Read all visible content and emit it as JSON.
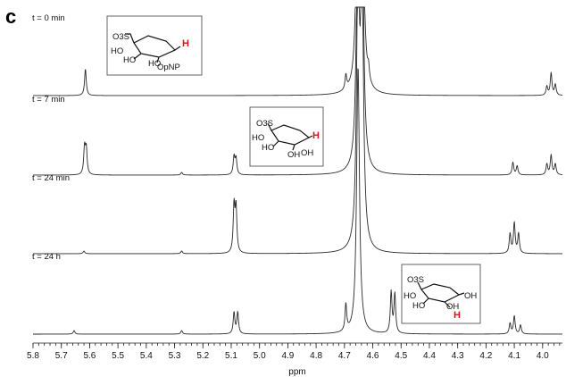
{
  "panel_label": "c",
  "chart_data": {
    "type": "line",
    "title": "",
    "xlabel": "ppm",
    "ylabel": "",
    "x_reversed": true,
    "xlim": [
      5.8,
      3.93
    ],
    "x_ticks": [
      "5.8",
      "5.7",
      "5.6",
      "5.5",
      "5.4",
      "5.3",
      "5.2",
      "5.1",
      "5.0",
      "4.9",
      "4.8",
      "4.7",
      "4.6",
      "4.5",
      "4.4",
      "4.3",
      "4.2",
      "4.1",
      "4.0"
    ],
    "grid": false,
    "series": [
      {
        "name": "t = 0 min",
        "peaks": [
          {
            "ppm": 5.615,
            "height": 30
          },
          {
            "ppm": 4.695,
            "height": 16
          },
          {
            "ppm": 4.652,
            "height": 300
          },
          {
            "ppm": 4.638,
            "height": 300
          },
          {
            "ppm": 4.615,
            "height": 14
          },
          {
            "ppm": 3.985,
            "height": 10
          },
          {
            "ppm": 3.97,
            "height": 25
          },
          {
            "ppm": 3.955,
            "height": 12
          }
        ],
        "structure": {
          "labels": [
            "O3S",
            "HO",
            "HO",
            "HO",
            "OpNP",
            "H"
          ],
          "highlight": "H"
        }
      },
      {
        "name": "t = 7 min",
        "peaks": [
          {
            "ppm": 5.618,
            "height": 30
          },
          {
            "ppm": 5.612,
            "height": 28
          },
          {
            "ppm": 5.275,
            "height": 3
          },
          {
            "ppm": 5.09,
            "height": 20
          },
          {
            "ppm": 5.083,
            "height": 18
          },
          {
            "ppm": 4.652,
            "height": 300
          },
          {
            "ppm": 4.638,
            "height": 300
          },
          {
            "ppm": 4.105,
            "height": 14
          },
          {
            "ppm": 4.09,
            "height": 10
          },
          {
            "ppm": 3.985,
            "height": 12
          },
          {
            "ppm": 3.97,
            "height": 22
          },
          {
            "ppm": 3.955,
            "height": 12
          }
        ],
        "structure": {
          "labels": [
            "O3S",
            "HO",
            "HO",
            "OH",
            "OH",
            "H"
          ],
          "highlight": "H"
        }
      },
      {
        "name": "t = 24 min",
        "peaks": [
          {
            "ppm": 5.62,
            "height": 3
          },
          {
            "ppm": 5.275,
            "height": 3
          },
          {
            "ppm": 5.09,
            "height": 52
          },
          {
            "ppm": 5.083,
            "height": 50
          },
          {
            "ppm": 4.652,
            "height": 300
          },
          {
            "ppm": 4.638,
            "height": 300
          },
          {
            "ppm": 4.115,
            "height": 22
          },
          {
            "ppm": 4.1,
            "height": 34
          },
          {
            "ppm": 4.085,
            "height": 22
          }
        ]
      },
      {
        "name": "t = 24 h",
        "peaks": [
          {
            "ppm": 5.655,
            "height": 4
          },
          {
            "ppm": 5.275,
            "height": 4
          },
          {
            "ppm": 5.09,
            "height": 24
          },
          {
            "ppm": 5.077,
            "height": 24
          },
          {
            "ppm": 4.695,
            "height": 30
          },
          {
            "ppm": 4.652,
            "height": 300
          },
          {
            "ppm": 4.535,
            "height": 46
          },
          {
            "ppm": 4.522,
            "height": 44
          },
          {
            "ppm": 4.115,
            "height": 12
          },
          {
            "ppm": 4.1,
            "height": 20
          },
          {
            "ppm": 4.078,
            "height": 10
          }
        ],
        "structure": {
          "labels": [
            "O3S",
            "HO",
            "HO",
            "OH",
            "OH",
            "H"
          ],
          "highlight": "H"
        }
      }
    ]
  }
}
